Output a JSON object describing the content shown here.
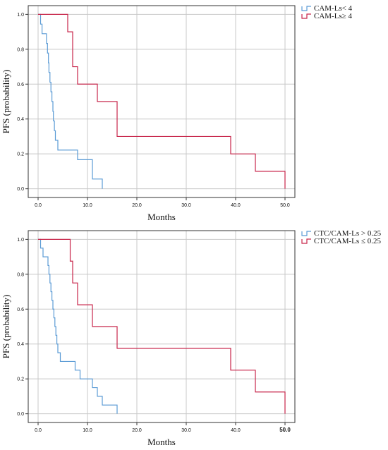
{
  "colors": {
    "series_blue": "#5b9bd5",
    "series_red": "#c8264b",
    "grid": "#c8c8c8",
    "axis": "#333333"
  },
  "chart_data": [
    {
      "type": "line",
      "step": true,
      "title": "",
      "xlabel": "Months",
      "ylabel": "PFS (probability)",
      "xlim": [
        -2,
        52
      ],
      "ylim": [
        -0.05,
        1.05
      ],
      "x_ticks": [
        {
          "value": 0,
          "label": "0.0",
          "bold": false
        },
        {
          "value": 10,
          "label": "10.0",
          "bold": false
        },
        {
          "value": 20,
          "label": "20.0",
          "bold": false
        },
        {
          "value": 30,
          "label": "30.0",
          "bold": false
        },
        {
          "value": 40,
          "label": "40.0",
          "bold": false
        },
        {
          "value": 50,
          "label": "50.0",
          "bold": false
        }
      ],
      "y_ticks": [
        {
          "value": 0.0,
          "label": "0.0"
        },
        {
          "value": 0.2,
          "label": "0.2"
        },
        {
          "value": 0.4,
          "label": "0.4"
        },
        {
          "value": 0.6,
          "label": "0.6"
        },
        {
          "value": 0.8,
          "label": "0.8"
        },
        {
          "value": 1.0,
          "label": "1.0"
        }
      ],
      "grid": true,
      "legend_position": "top-right",
      "series": [
        {
          "name": "CAM-Ls< 4",
          "color": "#5b9bd5",
          "points": [
            [
              0,
              1.0
            ],
            [
              0.5,
              0.944
            ],
            [
              0.8,
              0.889
            ],
            [
              1.7,
              0.833
            ],
            [
              1.9,
              0.778
            ],
            [
              2.1,
              0.722
            ],
            [
              2.2,
              0.667
            ],
            [
              2.4,
              0.611
            ],
            [
              2.6,
              0.556
            ],
            [
              2.8,
              0.5
            ],
            [
              3.0,
              0.444
            ],
            [
              3.1,
              0.389
            ],
            [
              3.3,
              0.333
            ],
            [
              3.5,
              0.278
            ],
            [
              4.0,
              0.222
            ],
            [
              8.0,
              0.167
            ],
            [
              11.0,
              0.056
            ],
            [
              13.0,
              0.0
            ]
          ]
        },
        {
          "name": "CAM-Ls≥ 4",
          "color": "#c8264b",
          "points": [
            [
              0,
              1.0
            ],
            [
              6.0,
              0.9
            ],
            [
              7.0,
              0.7
            ],
            [
              8.0,
              0.6
            ],
            [
              12.0,
              0.5
            ],
            [
              16.0,
              0.3
            ],
            [
              39.0,
              0.2
            ],
            [
              44.0,
              0.1
            ],
            [
              50.0,
              0.0
            ]
          ]
        }
      ]
    },
    {
      "type": "line",
      "step": true,
      "title": "",
      "xlabel": "Months",
      "ylabel": "PFS (probability)",
      "xlim": [
        -2,
        52
      ],
      "ylim": [
        -0.05,
        1.05
      ],
      "x_ticks": [
        {
          "value": 0,
          "label": "0.0",
          "bold": false
        },
        {
          "value": 10,
          "label": "10.0",
          "bold": false
        },
        {
          "value": 20,
          "label": "20.0",
          "bold": false
        },
        {
          "value": 30,
          "label": "30.0",
          "bold": false
        },
        {
          "value": 40,
          "label": "40.0",
          "bold": false
        },
        {
          "value": 50,
          "label": "50.0",
          "bold": true
        }
      ],
      "y_ticks": [
        {
          "value": 0.0,
          "label": "0.0"
        },
        {
          "value": 0.2,
          "label": "0.2"
        },
        {
          "value": 0.4,
          "label": "0.4"
        },
        {
          "value": 0.6,
          "label": "0.6"
        },
        {
          "value": 0.8,
          "label": "0.8"
        },
        {
          "value": 1.0,
          "label": "1.0"
        }
      ],
      "grid": true,
      "legend_position": "top-right",
      "series": [
        {
          "name": "CTC/CAM-Ls >  0.25",
          "color": "#5b9bd5",
          "points": [
            [
              0,
              1.0
            ],
            [
              0.5,
              0.95
            ],
            [
              1.0,
              0.9
            ],
            [
              2.0,
              0.85
            ],
            [
              2.2,
              0.8
            ],
            [
              2.4,
              0.75
            ],
            [
              2.6,
              0.7
            ],
            [
              2.8,
              0.65
            ],
            [
              3.0,
              0.6
            ],
            [
              3.2,
              0.55
            ],
            [
              3.4,
              0.5
            ],
            [
              3.6,
              0.45
            ],
            [
              3.8,
              0.4
            ],
            [
              4.0,
              0.35
            ],
            [
              4.5,
              0.3
            ],
            [
              7.5,
              0.25
            ],
            [
              8.5,
              0.2
            ],
            [
              11.0,
              0.15
            ],
            [
              12.0,
              0.1
            ],
            [
              13.0,
              0.05
            ],
            [
              16.0,
              0.0
            ]
          ]
        },
        {
          "name": "CTC/CAM-Ls ≤ 0.25",
          "color": "#c8264b",
          "points": [
            [
              0,
              1.0
            ],
            [
              6.5,
              0.875
            ],
            [
              7.0,
              0.75
            ],
            [
              8.0,
              0.625
            ],
            [
              11.0,
              0.5
            ],
            [
              16.0,
              0.375
            ],
            [
              39.0,
              0.25
            ],
            [
              44.0,
              0.125
            ],
            [
              50.0,
              0.0
            ]
          ]
        }
      ]
    }
  ]
}
